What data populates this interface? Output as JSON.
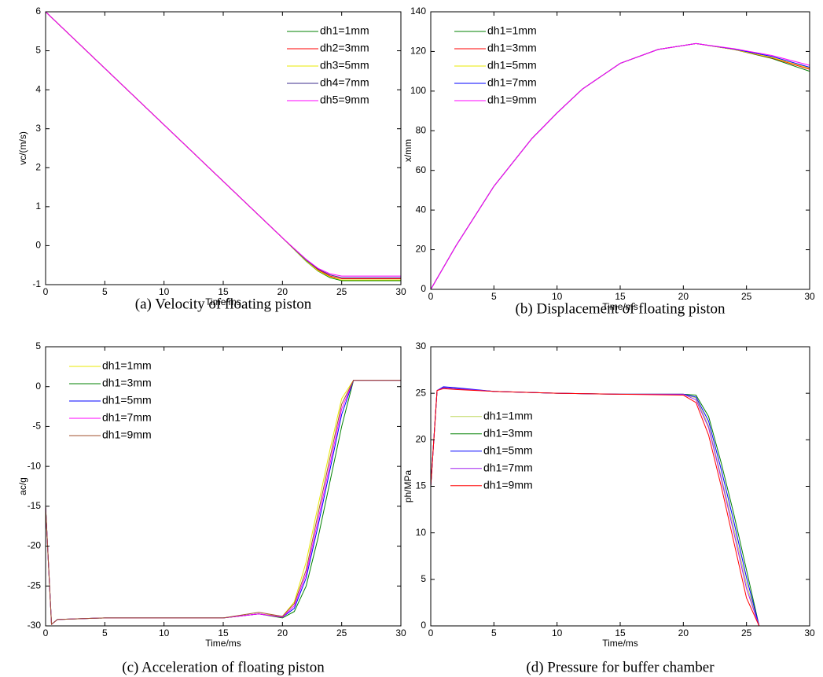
{
  "chart_data": [
    {
      "type": "line",
      "caption": "(a) Velocity of floating piston",
      "xlabel": "Time/ms",
      "ylabel": "vc/(m/s)",
      "x": [
        0,
        5,
        10,
        15,
        20,
        22,
        23,
        24,
        25,
        26,
        30
      ],
      "series": [
        {
          "name": "dh1=1mm",
          "color": "#008000",
          "values": [
            6,
            4.55,
            3.1,
            1.65,
            0.2,
            -0.4,
            -0.65,
            -0.82,
            -0.9,
            -0.9,
            -0.9
          ]
        },
        {
          "name": "dh2=3mm",
          "color": "#ff0000",
          "values": [
            6,
            4.55,
            3.1,
            1.65,
            0.2,
            -0.38,
            -0.62,
            -0.78,
            -0.85,
            -0.85,
            -0.85
          ]
        },
        {
          "name": "dh3=5mm",
          "color": "#e8e800",
          "values": [
            6,
            4.55,
            3.1,
            1.65,
            0.2,
            -0.39,
            -0.64,
            -0.8,
            -0.88,
            -0.88,
            -0.88
          ]
        },
        {
          "name": "dh4=7mm",
          "color": "#3c2d8c",
          "values": [
            6,
            4.55,
            3.1,
            1.65,
            0.2,
            -0.37,
            -0.6,
            -0.75,
            -0.82,
            -0.82,
            -0.82
          ]
        },
        {
          "name": "dh5=9mm",
          "color": "#ff00ff",
          "values": [
            6,
            4.55,
            3.1,
            1.65,
            0.2,
            -0.35,
            -0.58,
            -0.72,
            -0.78,
            -0.78,
            -0.78
          ]
        }
      ],
      "xlim": [
        0,
        30
      ],
      "xticks": [
        0,
        5,
        10,
        15,
        20,
        25,
        30
      ],
      "ylim": [
        -1,
        6
      ],
      "yticks": [
        -1,
        0,
        1,
        2,
        3,
        4,
        5,
        6
      ],
      "legend": "upper right"
    },
    {
      "type": "line",
      "caption": "(b) Displacement of floating piston",
      "xlabel": "Time/ms",
      "ylabel": "x/mm",
      "x": [
        0,
        2,
        5,
        8,
        10,
        12,
        15,
        18,
        21,
        24,
        27,
        30
      ],
      "series": [
        {
          "name": "dh1=1mm",
          "color": "#008000",
          "values": [
            0,
            22,
            52,
            76,
            89,
            101,
            114,
            121,
            124,
            121,
            116.5,
            110
          ]
        },
        {
          "name": "dh1=3mm",
          "color": "#ff0000",
          "values": [
            0,
            22,
            52,
            76,
            89,
            101,
            114,
            121,
            124,
            121,
            116.8,
            111
          ]
        },
        {
          "name": "dh1=5mm",
          "color": "#e8e800",
          "values": [
            0,
            22,
            52,
            76,
            89,
            101,
            114,
            121,
            124,
            121,
            117,
            111.5
          ]
        },
        {
          "name": "dh1=7mm",
          "color": "#0000ff",
          "values": [
            0,
            22,
            52,
            76,
            89,
            101,
            114,
            121,
            124,
            121.2,
            117.5,
            112
          ]
        },
        {
          "name": "dh1=9mm",
          "color": "#ff00ff",
          "values": [
            0,
            22,
            52,
            76,
            89,
            101,
            114,
            121,
            124,
            121.4,
            118,
            113
          ]
        }
      ],
      "xlim": [
        0,
        30
      ],
      "xticks": [
        0,
        5,
        10,
        15,
        20,
        25,
        30
      ],
      "ylim": [
        0,
        140
      ],
      "yticks": [
        0,
        20,
        40,
        60,
        80,
        100,
        120,
        140
      ],
      "legend": "upper left"
    },
    {
      "type": "line",
      "caption": "(c) Acceleration of floating piston",
      "xlabel": "Time/ms",
      "ylabel": "ac/g",
      "x": [
        0,
        0.5,
        1,
        5,
        10,
        15,
        18,
        20,
        21,
        22,
        23,
        24,
        25,
        26,
        27,
        30
      ],
      "series": [
        {
          "name": "dh1=1mm",
          "color": "#e8e800",
          "values": [
            -15,
            -29.8,
            -29.2,
            -29,
            -29,
            -29,
            -28.5,
            -28.8,
            -27,
            -22,
            -15,
            -8,
            -1.5,
            0.8,
            0.8,
            0.8
          ]
        },
        {
          "name": "dh1=3mm",
          "color": "#008000",
          "values": [
            -15,
            -29.8,
            -29.2,
            -29,
            -29,
            -29,
            -28.5,
            -29,
            -28.2,
            -25,
            -19,
            -12,
            -5,
            0.8,
            0.8,
            0.8
          ]
        },
        {
          "name": "dh1=5mm",
          "color": "#0000ff",
          "values": [
            -15,
            -29.8,
            -29.2,
            -29,
            -29,
            -29,
            -28.5,
            -28.9,
            -27.8,
            -24,
            -17.5,
            -10.5,
            -3.5,
            0.8,
            0.8,
            0.8
          ]
        },
        {
          "name": "dh1=7mm",
          "color": "#ff00ff",
          "values": [
            -15,
            -29.8,
            -29.2,
            -29,
            -29,
            -29,
            -28.5,
            -28.9,
            -27.5,
            -23.5,
            -16.8,
            -9.8,
            -2.8,
            0.8,
            0.8,
            0.8
          ]
        },
        {
          "name": "dh1=9mm",
          "color": "#a0522d",
          "values": [
            -15,
            -29.8,
            -29.2,
            -29,
            -29,
            -29,
            -28.3,
            -28.8,
            -27.2,
            -23,
            -16,
            -9,
            -2.2,
            0.8,
            0.8,
            0.8
          ]
        }
      ],
      "xlim": [
        0,
        30
      ],
      "xticks": [
        0,
        5,
        10,
        15,
        20,
        25,
        30
      ],
      "ylim": [
        -30,
        5
      ],
      "yticks": [
        -30,
        -25,
        -20,
        -15,
        -10,
        -5,
        0,
        5
      ],
      "legend": "upper left"
    },
    {
      "type": "line",
      "caption": "(d) Pressure for buffer chamber",
      "xlabel": "Time/ms",
      "ylabel": "ph/MPa",
      "x": [
        0,
        0.5,
        1,
        2,
        5,
        10,
        15,
        20,
        21,
        22,
        23,
        24,
        25,
        26,
        27,
        30
      ],
      "series": [
        {
          "name": "dh1=1mm",
          "color": "#c0d860",
          "values": [
            15,
            25.3,
            25.6,
            25.5,
            25.2,
            25,
            24.9,
            24.9,
            24.5,
            21.5,
            16,
            10.5,
            4.5,
            0,
            0,
            0
          ]
        },
        {
          "name": "dh1=3mm",
          "color": "#008000",
          "values": [
            15,
            25.3,
            25.6,
            25.5,
            25.2,
            25,
            24.9,
            24.9,
            24.8,
            22.5,
            17.5,
            12,
            6,
            0,
            0,
            0
          ]
        },
        {
          "name": "dh1=5mm",
          "color": "#0000ff",
          "values": [
            15,
            25.3,
            25.7,
            25.6,
            25.2,
            25,
            24.9,
            24.9,
            24.6,
            22,
            16.8,
            11.2,
            5.2,
            0,
            0,
            0
          ]
        },
        {
          "name": "dh1=7mm",
          "color": "#a020f0",
          "values": [
            15,
            25.3,
            25.6,
            25.5,
            25.2,
            25,
            24.9,
            24.9,
            24.3,
            21.3,
            15.8,
            10,
            4,
            0,
            0,
            0
          ]
        },
        {
          "name": "dh1=9mm",
          "color": "#ff0000",
          "values": [
            15,
            25.3,
            25.5,
            25.4,
            25.2,
            25,
            24.9,
            24.8,
            24,
            20.5,
            15,
            9,
            3,
            0,
            0,
            0
          ]
        }
      ],
      "xlim": [
        0,
        30
      ],
      "xticks": [
        0,
        5,
        10,
        15,
        20,
        25,
        30
      ],
      "ylim": [
        0,
        30
      ],
      "yticks": [
        0,
        5,
        10,
        15,
        20,
        25,
        30
      ],
      "legend": "center left"
    }
  ]
}
